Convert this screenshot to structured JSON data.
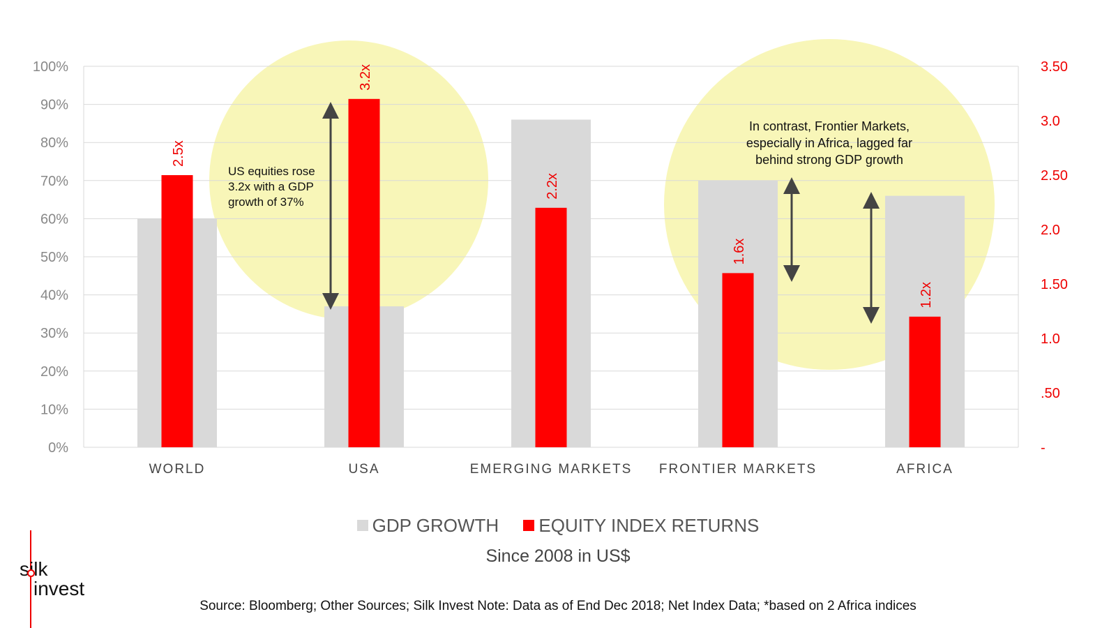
{
  "chart_data": {
    "type": "bar",
    "categories": [
      "WORLD",
      "USA",
      "EMERGING MARKETS",
      "FRONTIER MARKETS",
      "AFRICA"
    ],
    "series": [
      {
        "name": "GDP GROWTH",
        "axis": "left",
        "color": "#d9d9d9",
        "values": [
          60,
          37,
          86,
          70,
          66
        ]
      },
      {
        "name": "EQUITY INDEX RETURNS",
        "axis": "right",
        "color": "#ff0000",
        "values": [
          2.5,
          3.2,
          2.2,
          1.6,
          1.2
        ],
        "data_labels": [
          "2.5x",
          "3.2x",
          "2.2x",
          "1.6x",
          "1.2x"
        ]
      }
    ],
    "left_axis": {
      "ylim": [
        0,
        100
      ],
      "ticks": [
        "0%",
        "10%",
        "20%",
        "30%",
        "40%",
        "50%",
        "60%",
        "70%",
        "80%",
        "90%",
        "100%"
      ]
    },
    "right_axis": {
      "ylim": [
        0,
        3.5
      ],
      "ticks": [
        "-",
        ".50",
        "1.0",
        "1.50",
        "2.0",
        "2.50",
        "3.0",
        "3.50"
      ]
    },
    "grid": true,
    "legend": "bottom",
    "annotations": [
      {
        "text": [
          "US equities rose",
          "3.2x with a GDP",
          "growth of 37%"
        ]
      },
      {
        "text": [
          "In contrast, Frontier Markets,",
          "especially in Africa, lagged far",
          "behind strong GDP growth"
        ]
      }
    ],
    "highlight_color": "#f8f6b8"
  },
  "legend": {
    "gdp": "GDP GROWTH",
    "equity": "EQUITY INDEX RETURNS"
  },
  "subtitle": "Since 2008 in US$",
  "source": "Source:  Bloomberg; Other Sources; Silk Invest Note: Data as of End Dec 2018; Net Index Data; *based on 2 Africa indices",
  "logo": {
    "line1": "silk",
    "line2": "invest"
  },
  "colors": {
    "equity": "#ff0000",
    "gdp": "#d9d9d9",
    "grid": "#d9d9d9",
    "highlight": "#f8f6b8"
  }
}
